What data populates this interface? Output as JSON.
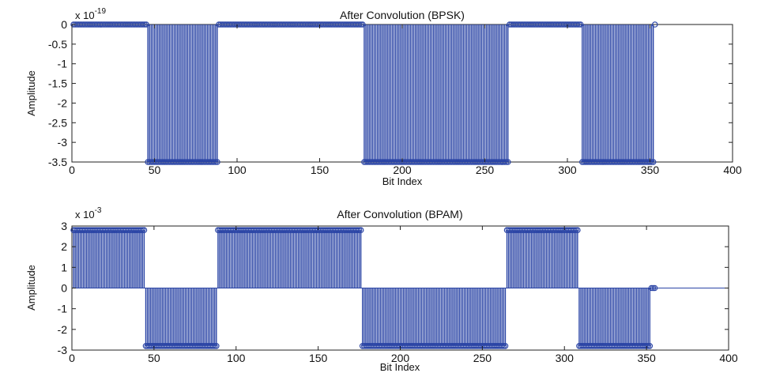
{
  "colors": {
    "series": "#2a44a5",
    "frame": "#222222",
    "background": "#ffffff"
  },
  "chart_data": [
    {
      "type": "stem",
      "title": "After Convolution (BPSK)",
      "xlabel": "Bit Index",
      "ylabel": "Amplitude",
      "y_exponent_base": "x 10",
      "y_exponent_power": "-19",
      "xlim": [
        0,
        400
      ],
      "ylim": [
        -3.5,
        0
      ],
      "xticks": [
        0,
        50,
        100,
        150,
        200,
        250,
        300,
        350,
        400
      ],
      "xtick_labels": [
        "0",
        "50",
        "100",
        "150",
        "200",
        "250",
        "300",
        "350",
        "400"
      ],
      "yticks": [
        0,
        -0.5,
        -1,
        -1.5,
        -2,
        -2.5,
        -3,
        -3.5
      ],
      "ytick_labels": [
        "0",
        "-0.5",
        "-1",
        "-1.5",
        "-2",
        "-2.5",
        "-3",
        "-3.5"
      ],
      "grid": false,
      "baseline": 0,
      "marker": "circle",
      "segments": [
        {
          "x_start": 1,
          "x_end": 45,
          "value": 0
        },
        {
          "x_start": 46,
          "x_end": 88,
          "value": -3.5
        },
        {
          "x_start": 89,
          "x_end": 176,
          "value": 0
        },
        {
          "x_start": 177,
          "x_end": 264,
          "value": -3.5
        },
        {
          "x_start": 265,
          "x_end": 308,
          "value": 0
        },
        {
          "x_start": 309,
          "x_end": 352,
          "value": -3.5
        },
        {
          "x_start": 353,
          "x_end": 353,
          "value": 0
        }
      ]
    },
    {
      "type": "stem",
      "title": "After Convolution (BPAM)",
      "xlabel": "Bit Index",
      "ylabel": "Amplitude",
      "y_exponent_base": "x 10",
      "y_exponent_power": "-3",
      "xlim": [
        0,
        400
      ],
      "ylim": [
        -3,
        3
      ],
      "xticks": [
        0,
        50,
        100,
        150,
        200,
        250,
        300,
        350,
        400
      ],
      "xtick_labels": [
        "0",
        "50",
        "100",
        "150",
        "200",
        "250",
        "300",
        "350",
        "400"
      ],
      "yticks": [
        3,
        2,
        1,
        0,
        -1,
        -2,
        -3
      ],
      "ytick_labels": [
        "3",
        "2",
        "1",
        "0",
        "-1",
        "-2",
        "-3"
      ],
      "grid": false,
      "baseline": 0,
      "marker": "circle",
      "segments": [
        {
          "x_start": 1,
          "x_end": 44,
          "value": 2.8
        },
        {
          "x_start": 45,
          "x_end": 88,
          "value": -2.8
        },
        {
          "x_start": 89,
          "x_end": 176,
          "value": 2.8
        },
        {
          "x_start": 177,
          "x_end": 264,
          "value": -2.8
        },
        {
          "x_start": 265,
          "x_end": 308,
          "value": 2.8
        },
        {
          "x_start": 309,
          "x_end": 352,
          "value": -2.8
        },
        {
          "x_start": 353,
          "x_end": 355,
          "value": 0
        }
      ]
    }
  ]
}
